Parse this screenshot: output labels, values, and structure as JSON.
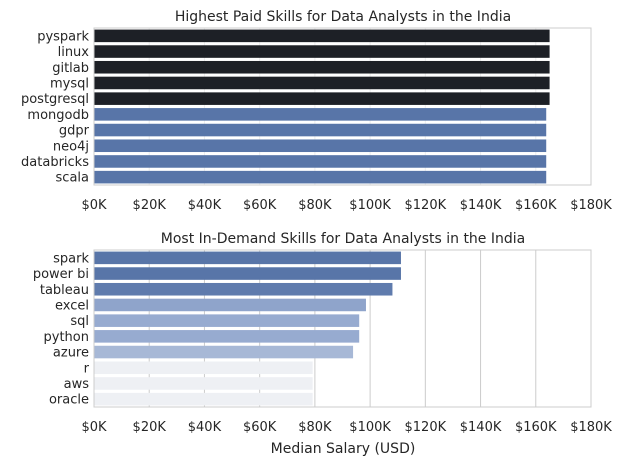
{
  "chart_data": [
    {
      "type": "bar",
      "orientation": "horizontal",
      "title": "Highest Paid Skills for Data Analysts in the India",
      "xlabel": "",
      "ylabel": "",
      "xlim": [
        0,
        180000
      ],
      "xticks": [
        "$0K",
        "$20K",
        "$40K",
        "$60K",
        "$80K",
        "$100K",
        "$120K",
        "$140K",
        "$160K",
        "$180K"
      ],
      "grid": "vertical-light",
      "categories": [
        "pyspark",
        "linux",
        "gitlab",
        "mysql",
        "postgresql",
        "mongodb",
        "gdpr",
        "neo4j",
        "databricks",
        "scala"
      ],
      "values": [
        165000,
        165000,
        165000,
        165000,
        165000,
        163782,
        163782,
        163782,
        163782,
        163782
      ],
      "bar_colors": [
        "#1d2026",
        "#1d2026",
        "#1d2026",
        "#1d2026",
        "#1d2026",
        "#5875a8",
        "#5875a8",
        "#5875a8",
        "#5875a8",
        "#5875a8"
      ]
    },
    {
      "type": "bar",
      "orientation": "horizontal",
      "title": "Most In-Demand Skills for Data Analysts in the India",
      "xlabel": "Median Salary (USD)",
      "ylabel": "",
      "xlim": [
        0,
        180000
      ],
      "xticks": [
        "$0K",
        "$20K",
        "$40K",
        "$60K",
        "$80K",
        "$100K",
        "$120K",
        "$140K",
        "$160K",
        "$180K"
      ],
      "grid": "vertical",
      "categories": [
        "spark",
        "power bi",
        "tableau",
        "excel",
        "sql",
        "python",
        "azure",
        "r",
        "aws",
        "oracle"
      ],
      "values": [
        111175,
        111175,
        108087,
        98500,
        96050,
        96050,
        93828,
        79200,
        79200,
        79200
      ],
      "bar_colors": [
        "#5875a8",
        "#5875a8",
        "#5f7bad",
        "#8fa4cb",
        "#97abd0",
        "#97abd0",
        "#a7b8d6",
        "#eef0f4",
        "#eef0f4",
        "#eef0f4"
      ]
    }
  ]
}
